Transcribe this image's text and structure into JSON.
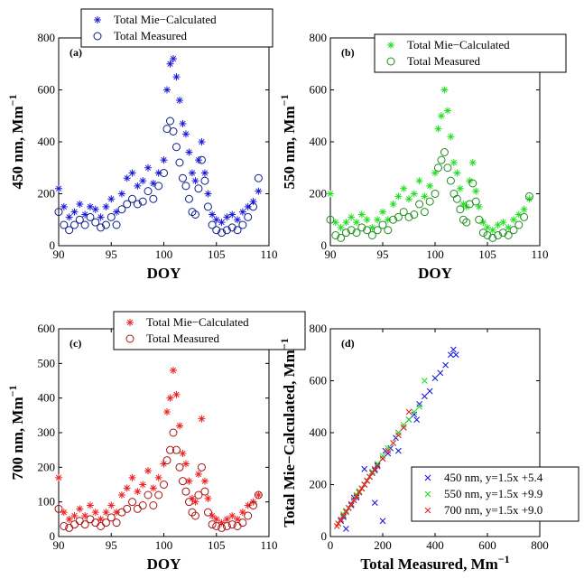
{
  "chart_data": [
    {
      "panel": "(a)",
      "type": "scatter",
      "xlabel": "DOY",
      "ylabel": "450 nm, Mm",
      "ylabel_sup": "−1",
      "xlim": [
        90,
        110
      ],
      "ylim": [
        0,
        800
      ],
      "xticks": [
        "90",
        "95",
        "100",
        "105",
        "110"
      ],
      "yticks": [
        "0",
        "200",
        "400",
        "600",
        "800"
      ],
      "legend": "top-center",
      "series": [
        {
          "name": "Total Mie−Calculated",
          "marker": "star",
          "color": "#1a1adc",
          "x": [
            90.0,
            90.5,
            91.0,
            91.5,
            92.0,
            92.5,
            93.0,
            93.5,
            94.0,
            94.5,
            95.0,
            95.5,
            96.0,
            96.5,
            97.0,
            97.5,
            98.0,
            98.5,
            99.0,
            99.5,
            100.0,
            100.3,
            100.6,
            100.9,
            101.2,
            101.5,
            101.8,
            102.1,
            102.4,
            102.7,
            103.0,
            103.3,
            103.6,
            103.9,
            104.2,
            104.6,
            105.0,
            105.5,
            106.0,
            106.5,
            107.0,
            107.5,
            108.0,
            108.5,
            109.0
          ],
          "y": [
            220,
            150,
            110,
            130,
            160,
            120,
            150,
            140,
            110,
            150,
            180,
            130,
            200,
            260,
            280,
            230,
            250,
            300,
            240,
            280,
            330,
            600,
            700,
            720,
            650,
            560,
            470,
            430,
            360,
            280,
            250,
            330,
            400,
            280,
            200,
            120,
            100,
            90,
            110,
            120,
            100,
            130,
            150,
            170,
            210
          ]
        },
        {
          "name": "Total Measured",
          "marker": "circle",
          "color": "#0a1a8c",
          "x": [
            90.0,
            90.5,
            91.0,
            91.5,
            92.0,
            92.5,
            93.0,
            93.5,
            94.0,
            94.5,
            95.0,
            95.5,
            96.0,
            96.5,
            97.0,
            97.5,
            98.0,
            98.5,
            99.0,
            99.5,
            100.0,
            100.3,
            100.6,
            100.9,
            101.2,
            101.5,
            101.8,
            102.1,
            102.4,
            102.7,
            103.0,
            103.3,
            103.6,
            103.9,
            104.2,
            104.6,
            105.0,
            105.5,
            106.0,
            106.5,
            107.0,
            107.5,
            108.0,
            108.5,
            109.0
          ],
          "y": [
            130,
            80,
            60,
            80,
            100,
            80,
            110,
            90,
            70,
            80,
            110,
            80,
            140,
            160,
            180,
            160,
            170,
            210,
            180,
            230,
            280,
            450,
            480,
            440,
            380,
            320,
            260,
            230,
            180,
            130,
            120,
            220,
            330,
            250,
            150,
            80,
            60,
            50,
            60,
            70,
            60,
            80,
            110,
            150,
            260
          ]
        }
      ]
    },
    {
      "panel": "(b)",
      "type": "scatter",
      "xlabel": "DOY",
      "ylabel": "550 nm, Mm",
      "ylabel_sup": "−1",
      "xlim": [
        90,
        110
      ],
      "ylim": [
        0,
        800
      ],
      "xticks": [
        "90",
        "95",
        "100",
        "105",
        "110"
      ],
      "yticks": [
        "0",
        "200",
        "400",
        "600",
        "800"
      ],
      "legend": "top-right",
      "series": [
        {
          "name": "Total Mie−Calculated",
          "marker": "star",
          "color": "#22dd22",
          "x": [
            90.0,
            90.5,
            91.0,
            91.5,
            92.0,
            92.5,
            93.0,
            93.5,
            94.0,
            94.5,
            95.0,
            95.5,
            96.0,
            96.5,
            97.0,
            97.5,
            98.0,
            98.5,
            99.0,
            99.5,
            100.0,
            100.3,
            100.6,
            100.9,
            101.2,
            101.5,
            101.8,
            102.1,
            102.4,
            102.7,
            103.0,
            103.3,
            103.6,
            103.9,
            104.2,
            104.6,
            105.0,
            105.5,
            106.0,
            106.5,
            107.0,
            107.5,
            108.0,
            108.5,
            109.0
          ],
          "y": [
            200,
            90,
            70,
            90,
            110,
            90,
            120,
            100,
            70,
            100,
            130,
            100,
            160,
            190,
            220,
            180,
            200,
            250,
            190,
            230,
            280,
            450,
            500,
            600,
            520,
            420,
            320,
            280,
            220,
            160,
            150,
            250,
            320,
            210,
            150,
            90,
            70,
            60,
            80,
            90,
            70,
            100,
            120,
            140,
            180
          ]
        },
        {
          "name": "Total Measured",
          "marker": "circle",
          "color": "#1a8c1a",
          "x": [
            90.0,
            90.5,
            91.0,
            91.5,
            92.0,
            92.5,
            93.0,
            93.5,
            94.0,
            94.5,
            95.0,
            95.5,
            96.0,
            96.5,
            97.0,
            97.5,
            98.0,
            98.5,
            99.0,
            99.5,
            100.0,
            100.3,
            100.6,
            100.9,
            101.2,
            101.5,
            101.8,
            102.1,
            102.4,
            102.7,
            103.0,
            103.3,
            103.6,
            103.9,
            104.2,
            104.6,
            105.0,
            105.5,
            106.0,
            106.5,
            107.0,
            107.5,
            108.0,
            108.5,
            109.0
          ],
          "y": [
            100,
            40,
            30,
            50,
            60,
            50,
            70,
            60,
            40,
            60,
            80,
            60,
            100,
            110,
            130,
            110,
            120,
            160,
            130,
            170,
            200,
            300,
            330,
            360,
            300,
            250,
            200,
            180,
            140,
            100,
            90,
            160,
            240,
            170,
            100,
            50,
            40,
            30,
            40,
            50,
            40,
            60,
            80,
            110,
            190
          ]
        }
      ]
    },
    {
      "panel": "(c)",
      "type": "scatter",
      "xlabel": "DOY",
      "ylabel": "700 nm, Mm",
      "ylabel_sup": "−1",
      "xlim": [
        90,
        110
      ],
      "ylim": [
        0,
        600
      ],
      "xticks": [
        "90",
        "95",
        "100",
        "105",
        "110"
      ],
      "yticks": [
        "0",
        "100",
        "200",
        "300",
        "400",
        "500",
        "600"
      ],
      "legend": "top-right",
      "series": [
        {
          "name": "Total Mie−Calculated",
          "marker": "star",
          "color": "#ee2222",
          "x": [
            90.0,
            90.5,
            91.0,
            91.5,
            92.0,
            92.5,
            93.0,
            93.5,
            94.0,
            94.5,
            95.0,
            95.5,
            96.0,
            96.5,
            97.0,
            97.5,
            98.0,
            98.5,
            99.0,
            99.5,
            100.0,
            100.3,
            100.6,
            100.9,
            101.2,
            101.5,
            101.8,
            102.1,
            102.4,
            102.7,
            103.0,
            103.3,
            103.6,
            103.9,
            104.2,
            104.6,
            105.0,
            105.5,
            106.0,
            106.5,
            107.0,
            107.5,
            108.0,
            108.5,
            109.0
          ],
          "y": [
            170,
            70,
            50,
            60,
            80,
            60,
            90,
            70,
            50,
            70,
            90,
            70,
            120,
            140,
            170,
            130,
            150,
            190,
            140,
            170,
            210,
            360,
            400,
            480,
            410,
            320,
            240,
            210,
            160,
            110,
            100,
            180,
            340,
            160,
            110,
            60,
            50,
            40,
            50,
            60,
            50,
            70,
            90,
            100,
            120
          ]
        },
        {
          "name": "Total Measured",
          "marker": "circle",
          "color": "#a81414",
          "x": [
            90.0,
            90.5,
            91.0,
            91.5,
            92.0,
            92.5,
            93.0,
            93.5,
            94.0,
            94.5,
            95.0,
            95.5,
            96.0,
            96.5,
            97.0,
            97.5,
            98.0,
            98.5,
            99.0,
            99.5,
            100.0,
            100.3,
            100.6,
            100.9,
            101.2,
            101.5,
            101.8,
            102.1,
            102.4,
            102.7,
            103.0,
            103.3,
            103.6,
            103.9,
            104.2,
            104.6,
            105.0,
            105.5,
            106.0,
            106.5,
            107.0,
            107.5,
            108.0,
            108.5,
            109.0
          ],
          "y": [
            80,
            30,
            25,
            35,
            45,
            35,
            50,
            40,
            30,
            40,
            55,
            40,
            70,
            80,
            100,
            80,
            90,
            120,
            90,
            120,
            150,
            220,
            250,
            300,
            250,
            200,
            160,
            130,
            100,
            70,
            60,
            120,
            200,
            130,
            70,
            35,
            30,
            25,
            30,
            35,
            30,
            40,
            60,
            90,
            120
          ]
        }
      ]
    },
    {
      "panel": "(d)",
      "type": "scatter",
      "xlabel": "Total Measured, Mm",
      "xlabel_sup": "−1",
      "ylabel": "Total Mie−Calculated, Mm",
      "ylabel_sup": "−1",
      "xlim": [
        0,
        800
      ],
      "ylim": [
        0,
        800
      ],
      "xticks": [
        "0",
        "200",
        "400",
        "600",
        "800"
      ],
      "yticks": [
        "0",
        "200",
        "400",
        "600",
        "800"
      ],
      "legend": "bottom-right",
      "series": [
        {
          "name": "450 nm, y=1.5x +5.4",
          "marker": "x",
          "color": "#1a1adc",
          "x": [
            40,
            50,
            60,
            70,
            80,
            90,
            100,
            110,
            120,
            130,
            140,
            150,
            160,
            170,
            180,
            200,
            210,
            220,
            230,
            250,
            260,
            280,
            300,
            320,
            340,
            360,
            380,
            400,
            420,
            440,
            460,
            470,
            480,
            60,
            90,
            130,
            170,
            200,
            260,
            330
          ],
          "y": [
            60,
            75,
            95,
            110,
            120,
            140,
            150,
            170,
            185,
            200,
            215,
            230,
            245,
            255,
            275,
            300,
            330,
            320,
            340,
            380,
            400,
            420,
            450,
            470,
            510,
            540,
            560,
            610,
            630,
            660,
            700,
            720,
            700,
            30,
            150,
            260,
            130,
            60,
            330,
            450
          ]
        },
        {
          "name": "550 nm, y=1.5x +9.9",
          "marker": "x",
          "color": "#22dd22",
          "x": [
            30,
            40,
            50,
            60,
            70,
            80,
            90,
            100,
            110,
            120,
            130,
            140,
            150,
            160,
            170,
            180,
            200,
            220,
            240,
            260,
            280,
            300,
            320,
            340,
            360
          ],
          "y": [
            50,
            65,
            85,
            100,
            110,
            125,
            140,
            160,
            175,
            185,
            200,
            215,
            230,
            250,
            260,
            280,
            310,
            340,
            360,
            400,
            430,
            450,
            480,
            500,
            600
          ]
        },
        {
          "name": "700 nm, y=1.5x +9.0",
          "marker": "x",
          "color": "#ee2222",
          "x": [
            25,
            30,
            40,
            50,
            60,
            70,
            80,
            90,
            100,
            110,
            120,
            130,
            140,
            150,
            160,
            170,
            180,
            200,
            220,
            240,
            260,
            280,
            300
          ],
          "y": [
            40,
            50,
            65,
            80,
            95,
            110,
            125,
            140,
            155,
            170,
            185,
            200,
            215,
            230,
            245,
            260,
            270,
            300,
            330,
            360,
            390,
            420,
            480
          ]
        }
      ]
    }
  ]
}
